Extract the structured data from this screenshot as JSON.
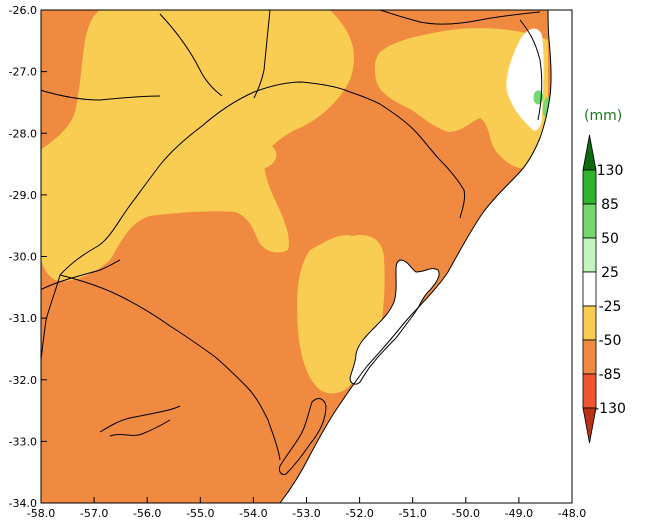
{
  "map": {
    "lon_range": [
      -58.0,
      -48.0
    ],
    "lat_range": [
      -34.0,
      -26.0
    ],
    "x_ticks": [
      "-58.0",
      "-57.0",
      "-56.0",
      "-55.0",
      "-54.0",
      "-53.0",
      "-52.0",
      "-51.0",
      "-50.0",
      "-49.0",
      "-48.0"
    ],
    "y_ticks": [
      "-26.0",
      "-27.0",
      "-28.0",
      "-29.0",
      "-30.0",
      "-31.0",
      "-32.0",
      "-33.0",
      "-34.0"
    ],
    "background_color": "#f08a40",
    "colors": {
      "lt_-130": "#b83218",
      "-130_-85": "#ef5530",
      "-85_-50": "#f08a40",
      "-50_-25": "#f9cd52",
      "-25_25": "#ffffff",
      "25_50": "#c3f4bf",
      "50_85": "#74d86f",
      "85_130": "#2fb32c",
      "gt_130": "#0e6a0e",
      "ocean": "#ffffff",
      "border": "#000000"
    }
  },
  "legend": {
    "title": "(mm)",
    "labels": [
      "130",
      "85",
      "50",
      "25",
      "-25",
      "-50",
      "-85",
      "-130"
    ],
    "colors": [
      "#0e6a0e",
      "#2fb32c",
      "#74d86f",
      "#c3f4bf",
      "#ffffff",
      "#f9cd52",
      "#f08a40",
      "#ef5530",
      "#b83218"
    ]
  }
}
